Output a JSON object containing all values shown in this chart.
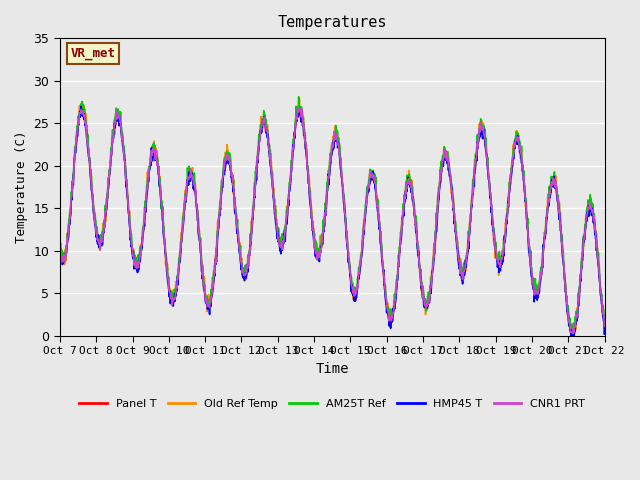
{
  "title": "Temperatures",
  "xlabel": "Time",
  "ylabel": "Temperature (C)",
  "ylim": [
    0,
    35
  ],
  "xlim": [
    0,
    15
  ],
  "background_color": "#e8e8e8",
  "plot_bg_color": "#e8e8e8",
  "grid_color": "white",
  "annotation_text": "VR_met",
  "annotation_box_color": "#f5f5c8",
  "annotation_box_edge": "#8b4513",
  "x_tick_labels": [
    "Oct 7",
    "Oct 8",
    "Oct 9",
    "Oct 10",
    "Oct 11",
    "Oct 12",
    "Oct 13",
    "Oct 14",
    "Oct 15",
    "Oct 16",
    "Oct 17",
    "Oct 18",
    "Oct 19",
    "Oct 20",
    "Oct 21",
    "Oct 22"
  ],
  "series_colors": [
    "#ff0000",
    "#ff8c00",
    "#00cc00",
    "#0000ff",
    "#cc44cc"
  ],
  "series_names": [
    "Panel T",
    "Old Ref Temp",
    "AM25T Ref",
    "HMP45 T",
    "CNR1 PRT"
  ],
  "line_width": 1.2
}
